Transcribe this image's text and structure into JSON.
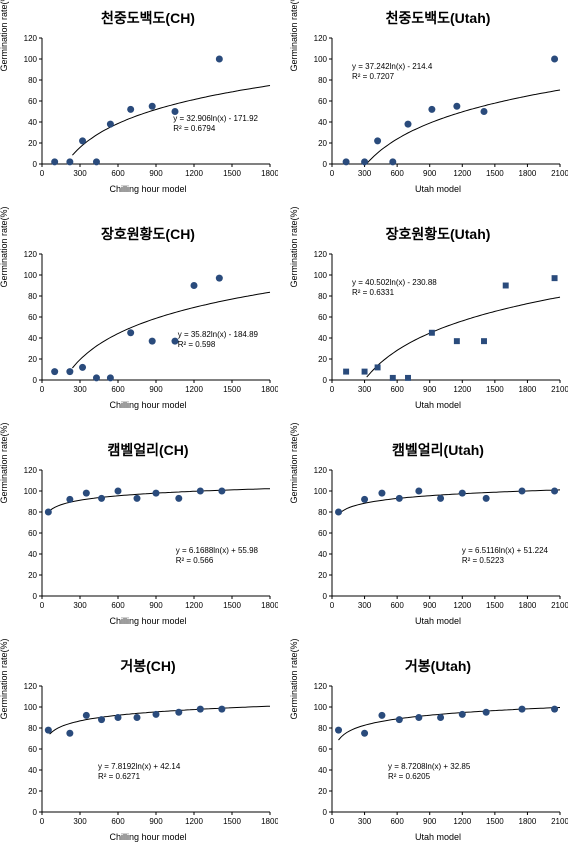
{
  "global": {
    "ylabel": "Germination rate(%)",
    "xlabel_ch": "Chilling hour model",
    "xlabel_utah": "Utah model",
    "marker_color": "#2a4b7c",
    "line_color": "#000000",
    "axis_color": "#000000",
    "background_color": "#ffffff",
    "title_fontsize": 14,
    "label_fontsize": 9,
    "tick_fontsize": 8,
    "eqn_fontsize": 8,
    "ylim": [
      0,
      120
    ],
    "ytick_step": 20,
    "xlim_narrow_max": 1800,
    "xlim_wide_max": 2100,
    "xtick_step": 300,
    "marker_radius": 3.5,
    "line_width": 1
  },
  "charts": [
    {
      "title": "천중도백도(CH)",
      "xlabel_key": "xlabel_ch",
      "xmax": 1800,
      "marker": "circle",
      "eqn_pos": "right",
      "eqn1": "y = 32.906ln(x) - 171.92",
      "eqn2": "R² = 0.6794",
      "curve": {
        "a": 32.906,
        "b": -171.92,
        "xstart": 240
      },
      "points": [
        {
          "x": 100,
          "y": 2
        },
        {
          "x": 220,
          "y": 2
        },
        {
          "x": 320,
          "y": 22
        },
        {
          "x": 430,
          "y": 2
        },
        {
          "x": 540,
          "y": 38
        },
        {
          "x": 700,
          "y": 52
        },
        {
          "x": 870,
          "y": 55
        },
        {
          "x": 1050,
          "y": 50
        },
        {
          "x": 1400,
          "y": 100
        }
      ]
    },
    {
      "title": "천중도백도(Utah)",
      "xlabel_key": "xlabel_utah",
      "xmax": 2100,
      "marker": "circle",
      "eqn_pos": "left",
      "eqn1": "y = 37.242ln(x) - 214.4",
      "eqn2": "R² = 0.7207",
      "curve": {
        "a": 37.242,
        "b": -214.4,
        "xstart": 320
      },
      "points": [
        {
          "x": 130,
          "y": 2
        },
        {
          "x": 300,
          "y": 2
        },
        {
          "x": 420,
          "y": 22
        },
        {
          "x": 560,
          "y": 2
        },
        {
          "x": 700,
          "y": 38
        },
        {
          "x": 920,
          "y": 52
        },
        {
          "x": 1150,
          "y": 55
        },
        {
          "x": 1400,
          "y": 50
        },
        {
          "x": 2050,
          "y": 100
        }
      ]
    },
    {
      "title": "장호원황도(CH)",
      "xlabel_key": "xlabel_ch",
      "xmax": 1800,
      "marker": "circle",
      "eqn_pos": "right",
      "eqn1": "y = 35.82ln(x) - 184.89",
      "eqn2": "R² = 0.598",
      "curve": {
        "a": 35.82,
        "b": -184.89,
        "xstart": 240
      },
      "points": [
        {
          "x": 100,
          "y": 8
        },
        {
          "x": 220,
          "y": 8
        },
        {
          "x": 320,
          "y": 12
        },
        {
          "x": 430,
          "y": 2
        },
        {
          "x": 540,
          "y": 2
        },
        {
          "x": 700,
          "y": 45
        },
        {
          "x": 870,
          "y": 37
        },
        {
          "x": 1050,
          "y": 37
        },
        {
          "x": 1200,
          "y": 90
        },
        {
          "x": 1400,
          "y": 97
        }
      ]
    },
    {
      "title": "장호원황도(Utah)",
      "xlabel_key": "xlabel_utah",
      "xmax": 2100,
      "marker": "square",
      "eqn_pos": "left",
      "eqn1": "y = 40.502ln(x) - 230.88",
      "eqn2": "R² = 0.6331",
      "curve": {
        "a": 40.502,
        "b": -230.88,
        "xstart": 320
      },
      "points": [
        {
          "x": 130,
          "y": 8
        },
        {
          "x": 300,
          "y": 8
        },
        {
          "x": 420,
          "y": 12
        },
        {
          "x": 560,
          "y": 2
        },
        {
          "x": 700,
          "y": 2
        },
        {
          "x": 920,
          "y": 45
        },
        {
          "x": 1150,
          "y": 37
        },
        {
          "x": 1400,
          "y": 37
        },
        {
          "x": 1600,
          "y": 90
        },
        {
          "x": 2050,
          "y": 97
        }
      ]
    },
    {
      "title": "캠벨얼리(CH)",
      "xlabel_key": "xlabel_ch",
      "xmax": 1800,
      "marker": "circle",
      "eqn_pos": "right",
      "eqn1": "y = 6.1688ln(x) + 55.98",
      "eqn2": "R² = 0.566",
      "curve": {
        "a": 6.1688,
        "b": 55.98,
        "xstart": 60
      },
      "points": [
        {
          "x": 50,
          "y": 80
        },
        {
          "x": 220,
          "y": 92
        },
        {
          "x": 350,
          "y": 98
        },
        {
          "x": 470,
          "y": 93
        },
        {
          "x": 600,
          "y": 100
        },
        {
          "x": 750,
          "y": 93
        },
        {
          "x": 900,
          "y": 98
        },
        {
          "x": 1080,
          "y": 93
        },
        {
          "x": 1250,
          "y": 100
        },
        {
          "x": 1420,
          "y": 100
        }
      ]
    },
    {
      "title": "캠벨얼리(Utah)",
      "xlabel_key": "xlabel_utah",
      "xmax": 2100,
      "marker": "circle",
      "eqn_pos": "right",
      "eqn1": "y = 6.5116ln(x) + 51.224",
      "eqn2": "R² = 0.5223",
      "curve": {
        "a": 6.5116,
        "b": 51.224,
        "xstart": 60
      },
      "points": [
        {
          "x": 60,
          "y": 80
        },
        {
          "x": 300,
          "y": 92
        },
        {
          "x": 460,
          "y": 98
        },
        {
          "x": 620,
          "y": 93
        },
        {
          "x": 800,
          "y": 100
        },
        {
          "x": 1000,
          "y": 93
        },
        {
          "x": 1200,
          "y": 98
        },
        {
          "x": 1420,
          "y": 93
        },
        {
          "x": 1750,
          "y": 100
        },
        {
          "x": 2050,
          "y": 100
        }
      ]
    },
    {
      "title": "거봉(CH)",
      "xlabel_key": "xlabel_ch",
      "xmax": 1800,
      "marker": "circle",
      "eqn_pos": "center",
      "eqn1": "y = 7.8192ln(x) + 42.14",
      "eqn2": "R² = 0.6271",
      "curve": {
        "a": 7.8192,
        "b": 42.14,
        "xstart": 60
      },
      "points": [
        {
          "x": 50,
          "y": 78
        },
        {
          "x": 220,
          "y": 75
        },
        {
          "x": 350,
          "y": 92
        },
        {
          "x": 470,
          "y": 88
        },
        {
          "x": 600,
          "y": 90
        },
        {
          "x": 750,
          "y": 90
        },
        {
          "x": 900,
          "y": 93
        },
        {
          "x": 1080,
          "y": 95
        },
        {
          "x": 1250,
          "y": 98
        },
        {
          "x": 1420,
          "y": 98
        }
      ]
    },
    {
      "title": "거봉(Utah)",
      "xlabel_key": "xlabel_utah",
      "xmax": 2100,
      "marker": "circle",
      "eqn_pos": "center",
      "eqn1": "y = 8.7208ln(x) + 32.85",
      "eqn2": "R² = 0.6205",
      "curve": {
        "a": 8.7208,
        "b": 32.85,
        "xstart": 60
      },
      "points": [
        {
          "x": 60,
          "y": 78
        },
        {
          "x": 300,
          "y": 75
        },
        {
          "x": 460,
          "y": 92
        },
        {
          "x": 620,
          "y": 88
        },
        {
          "x": 800,
          "y": 90
        },
        {
          "x": 1000,
          "y": 90
        },
        {
          "x": 1200,
          "y": 93
        },
        {
          "x": 1420,
          "y": 95
        },
        {
          "x": 1750,
          "y": 98
        },
        {
          "x": 2050,
          "y": 98
        }
      ]
    }
  ]
}
